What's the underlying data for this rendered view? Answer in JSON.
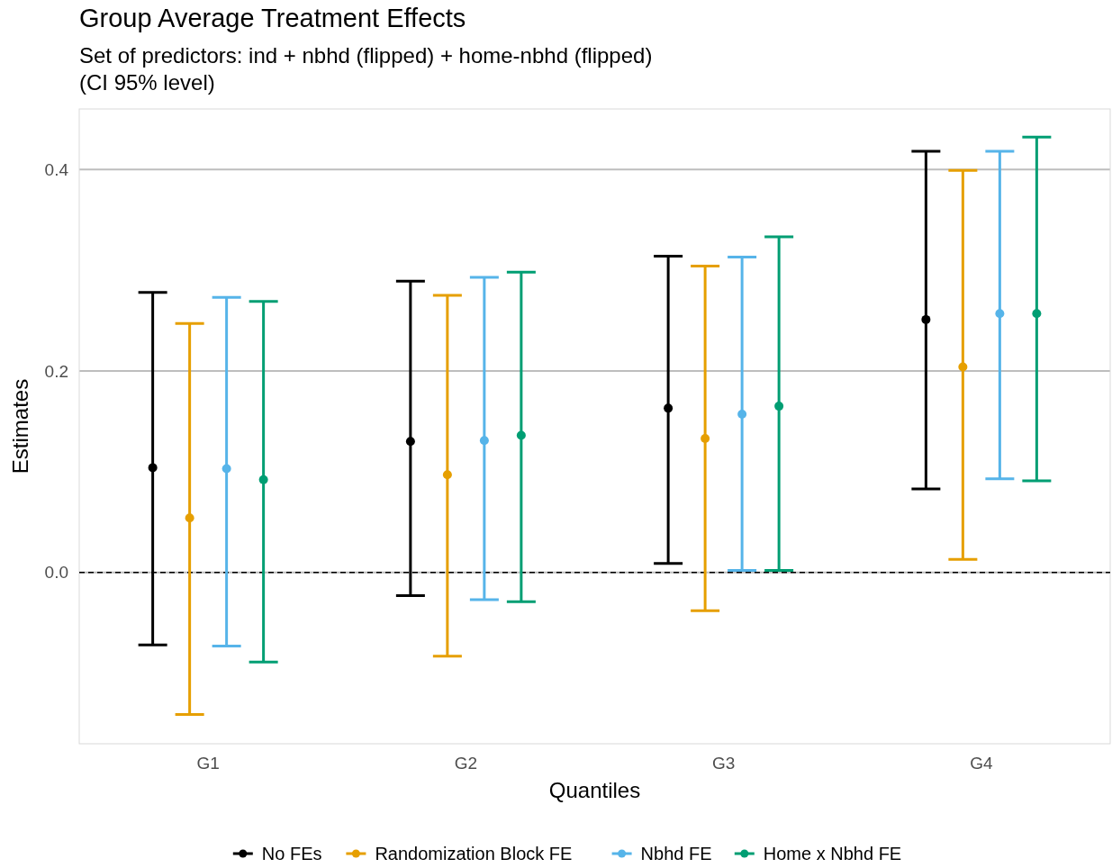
{
  "chart_data": {
    "type": "scatter",
    "title": "Group Average Treatment Effects",
    "subtitle": "Set of predictors: ind + nbhd (flipped) + home-nbhd (flipped)\n(CI 95% level)",
    "xlabel": "Quantiles",
    "ylabel": "Estimates",
    "categories": [
      "G1",
      "G2",
      "G3",
      "G4"
    ],
    "ylim": [
      -0.17,
      0.46
    ],
    "yticks": [
      {
        "value": 0,
        "label": "0.0"
      },
      0.2,
      0.4
    ],
    "grid": "y",
    "legend": "bottom",
    "marker": "circle",
    "ref_lines": [
      {
        "axis": "y",
        "value": 0,
        "line_style": "dashed",
        "color": "#000000"
      }
    ],
    "series": [
      {
        "name": "No FEs",
        "color": "#000000",
        "values": [
          0.104,
          0.13,
          0.163,
          0.251
        ],
        "errors": [
          [
            -0.072,
            0.278
          ],
          [
            -0.023,
            0.289
          ],
          [
            0.009,
            0.314
          ],
          [
            0.083,
            0.418
          ]
        ]
      },
      {
        "name": "Randomization Block FE",
        "color": "#e69f00",
        "values": [
          0.054,
          0.097,
          0.133,
          0.204
        ],
        "errors": [
          [
            -0.141,
            0.247
          ],
          [
            -0.083,
            0.275
          ],
          [
            -0.038,
            0.304
          ],
          [
            0.013,
            0.399
          ]
        ]
      },
      {
        "name": "Nbhd FE",
        "color": "#56b4e9",
        "values": [
          0.103,
          0.131,
          0.157,
          0.257
        ],
        "errors": [
          [
            -0.073,
            0.273
          ],
          [
            -0.027,
            0.293
          ],
          [
            0.002,
            0.313
          ],
          [
            0.093,
            0.418
          ]
        ]
      },
      {
        "name": "Home x Nbhd FE",
        "color": "#009e73",
        "values": [
          0.092,
          0.136,
          0.165,
          0.257
        ],
        "errors": [
          [
            -0.089,
            0.269
          ],
          [
            -0.029,
            0.298
          ],
          [
            0.002,
            0.333
          ],
          [
            0.091,
            0.432
          ]
        ]
      }
    ]
  }
}
